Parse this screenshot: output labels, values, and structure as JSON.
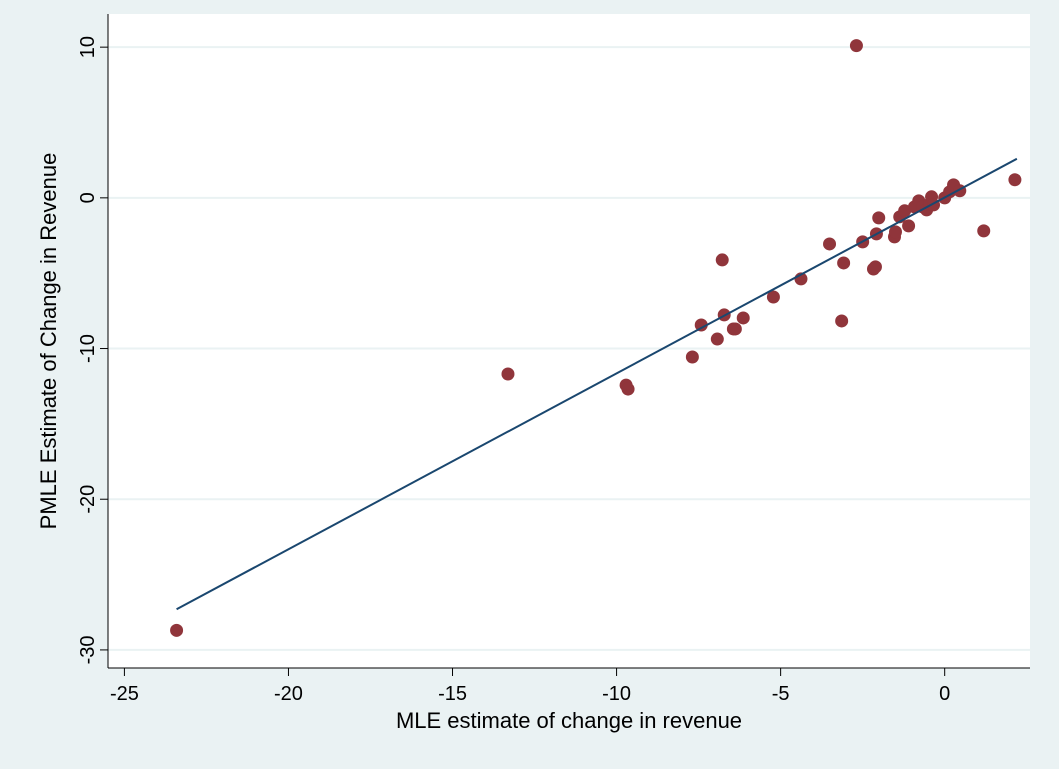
{
  "chart_data": {
    "type": "scatter",
    "x_label": "MLE estimate of change in revenue",
    "y_label": "PMLE Estimate of Change in Revenue",
    "xlim": [
      -25.5,
      2.6
    ],
    "ylim": [
      -31.2,
      12.2
    ],
    "xticks": [
      -25,
      -20,
      -15,
      -10,
      -5,
      0
    ],
    "yticks": [
      -30,
      -20,
      -10,
      0,
      10
    ],
    "grid": true,
    "series": [
      {
        "color": "#90353b",
        "x": [
          -23.41,
          -13.31,
          -9.71,
          -9.65,
          -7.69,
          -7.42,
          -6.93,
          -6.78,
          -6.72,
          -6.44,
          -6.38,
          -6.14,
          -5.22,
          -4.38,
          -3.51,
          -3.14,
          -3.08,
          -2.69,
          -2.5,
          -2.17,
          -2.11,
          -2.08,
          -2.01,
          -1.53,
          -1.5,
          -1.37,
          -1.22,
          -1.1,
          -0.92,
          -0.79,
          -0.67,
          -0.55,
          -0.46,
          -0.4,
          -0.34,
          0,
          0.15,
          0.27,
          0.46,
          1.19,
          2.14
        ],
        "values": [
          -28.7,
          -11.69,
          -12.43,
          -12.69,
          -10.56,
          -8.44,
          -9.37,
          -4.12,
          -7.77,
          -8.7,
          -8.7,
          -7.97,
          -6.58,
          -5.38,
          -3.06,
          -8.17,
          -4.32,
          10.1,
          -2.92,
          -4.72,
          -4.58,
          -2.39,
          -1.33,
          -2.59,
          -2.26,
          -1.26,
          -0.86,
          -1.86,
          -0.6,
          -0.2,
          -0.6,
          -0.8,
          -0.4,
          0.07,
          -0.47,
          0,
          0.4,
          0.86,
          0.47,
          -2.19,
          1.2
        ]
      }
    ],
    "fit_line": {
      "color": "#1a476f",
      "x": [
        -23.41,
        2.2
      ],
      "values": [
        -27.3,
        2.59
      ]
    }
  }
}
